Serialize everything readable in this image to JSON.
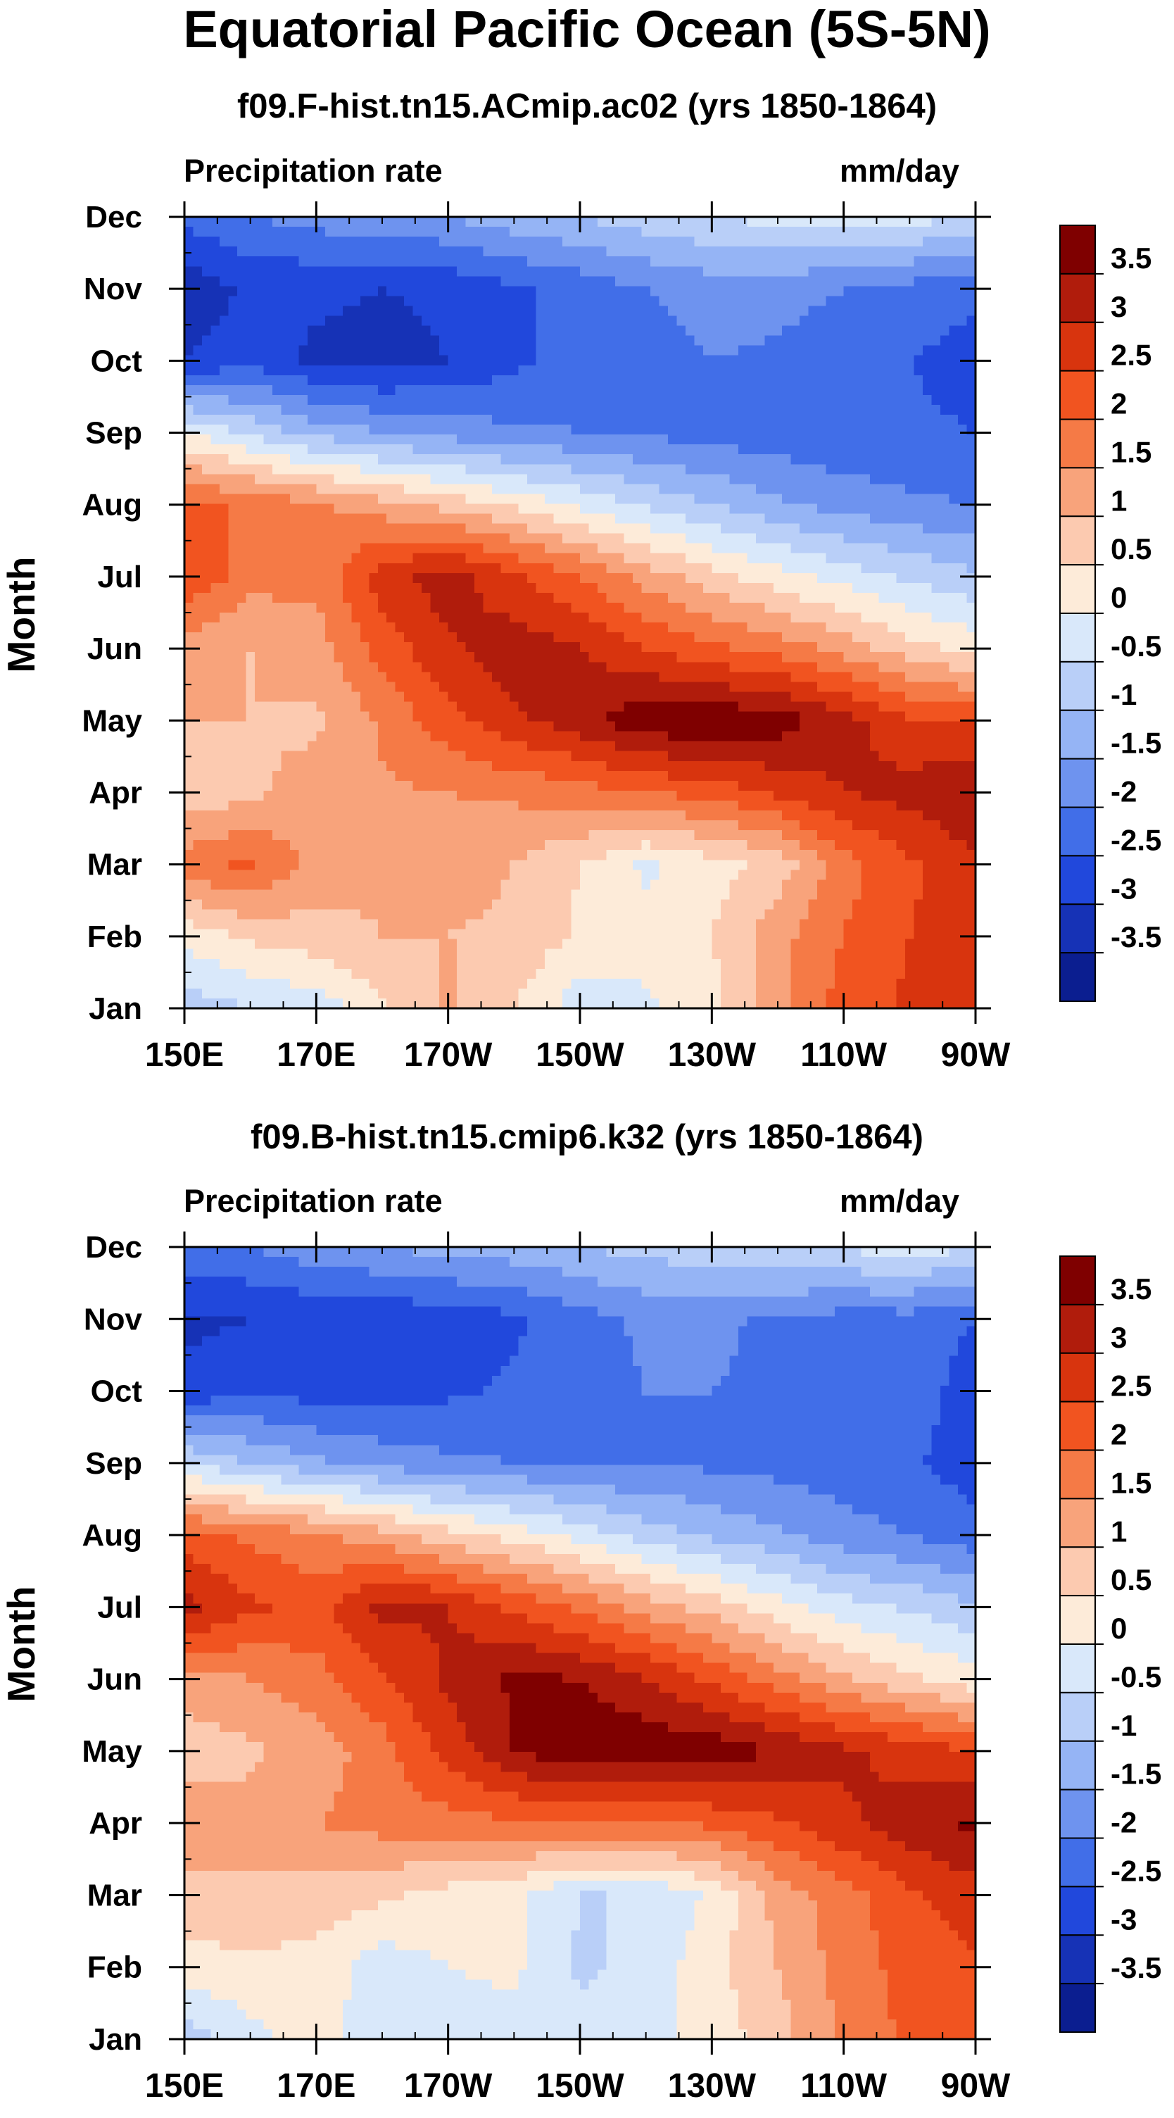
{
  "title": "Equatorial Pacific Ocean (5S-5N)",
  "chart_data": [
    {
      "type": "heatmap",
      "subtitle": "f09.F-hist.tn15.ACmip.ac02 (yrs 1850-1864)",
      "variable_label": "Precipitation rate",
      "units": "mm/day",
      "xlabel": "",
      "ylabel": "Month",
      "x_ticks": [
        "150E",
        "170E",
        "170W",
        "150W",
        "130W",
        "110W",
        "90W"
      ],
      "y_ticks": [
        "Jan",
        "Feb",
        "Mar",
        "Apr",
        "May",
        "Jun",
        "Jul",
        "Aug",
        "Sep",
        "Oct",
        "Nov",
        "Dec"
      ],
      "xlim": [
        150,
        270
      ],
      "ylim": [
        1,
        12
      ],
      "contour_levels": [
        "3.5",
        "3",
        "2.5",
        "2",
        "1.5",
        "1",
        "0.5",
        "0",
        "-0.5",
        "-1",
        "-1.5",
        "-2",
        "-2.5",
        "-3",
        "-3.5"
      ],
      "colors": [
        "#7f0000",
        "#b01c0c",
        "#d8340e",
        "#f15420",
        "#f57a46",
        "#f8a37b",
        "#fccab0",
        "#fdebd9",
        "#d9e8fa",
        "#b9cff8",
        "#95b4f5",
        "#6e93ef",
        "#416ee8",
        "#2148dc",
        "#1632b6",
        "#0b1e90"
      ],
      "values": [
        [
          -0.8,
          -0.5,
          -0.3,
          0.4,
          1.1,
          0.5,
          -0.3,
          -0.1,
          0.3,
          1.4,
          2.2,
          2.6,
          2.9
        ],
        [
          0.2,
          0.6,
          0.8,
          1.0,
          1.0,
          0.9,
          0.4,
          0.2,
          0.5,
          1.3,
          2.0,
          2.5,
          2.8
        ],
        [
          1.8,
          2.1,
          1.3,
          1.1,
          1.2,
          1.0,
          0.5,
          -0.1,
          0.3,
          0.7,
          1.8,
          2.4,
          2.9
        ],
        [
          0.6,
          0.9,
          1.2,
          1.4,
          1.5,
          1.6,
          1.8,
          2.0,
          2.2,
          2.6,
          3.0,
          3.2,
          3.5
        ],
        [
          1.0,
          1.0,
          0.9,
          1.6,
          2.3,
          2.9,
          3.3,
          3.9,
          3.9,
          3.8,
          3.2,
          2.6,
          2.4
        ],
        [
          1.2,
          1.0,
          1.3,
          2.2,
          2.9,
          3.3,
          3.0,
          2.5,
          2.1,
          1.8,
          1.3,
          0.7,
          0.3
        ],
        [
          2.5,
          1.7,
          1.6,
          2.8,
          3.3,
          2.6,
          2.0,
          1.3,
          0.7,
          0.2,
          -0.2,
          -0.6,
          -0.9
        ],
        [
          2.2,
          1.9,
          1.6,
          1.2,
          0.8,
          0.4,
          -0.1,
          -0.6,
          -1.0,
          -1.4,
          -1.7,
          -1.9,
          -2.0
        ],
        [
          0.0,
          -0.6,
          -1.2,
          -1.5,
          -1.7,
          -1.9,
          -2.0,
          -2.1,
          -2.2,
          -2.3,
          -2.4,
          -2.4,
          -2.5
        ],
        [
          -3.0,
          -2.7,
          -3.1,
          -3.2,
          -3.0,
          -2.6,
          -2.3,
          -2.2,
          -2.0,
          -2.1,
          -2.4,
          -2.5,
          -2.7
        ],
        [
          -3.4,
          -2.9,
          -2.9,
          -3.0,
          -2.9,
          -2.6,
          -2.3,
          -2.0,
          -1.8,
          -1.8,
          -2.0,
          -2.2,
          -2.4
        ],
        [
          -2.3,
          -2.0,
          -1.8,
          -1.6,
          -1.5,
          -1.2,
          -1.0,
          -0.7,
          -0.5,
          -0.3,
          -0.2,
          -0.3,
          -0.5
        ]
      ]
    },
    {
      "type": "heatmap",
      "subtitle": "f09.B-hist.tn15.cmip6.k32 (yrs 1850-1864)",
      "variable_label": "Precipitation rate",
      "units": "mm/day",
      "xlabel": "",
      "ylabel": "Month",
      "x_ticks": [
        "150E",
        "170E",
        "170W",
        "150W",
        "130W",
        "110W",
        "90W"
      ],
      "y_ticks": [
        "Jan",
        "Feb",
        "Mar",
        "Apr",
        "May",
        "Jun",
        "Jul",
        "Aug",
        "Sep",
        "Oct",
        "Nov",
        "Dec"
      ],
      "xlim": [
        150,
        270
      ],
      "ylim": [
        1,
        12
      ],
      "contour_levels": [
        "3.5",
        "3",
        "2.5",
        "2",
        "1.5",
        "1",
        "0.5",
        "0",
        "-0.5",
        "-1",
        "-1.5",
        "-2",
        "-2.5",
        "-3",
        "-3.5"
      ],
      "colors": [
        "#7f0000",
        "#b01c0c",
        "#d8340e",
        "#f15420",
        "#f57a46",
        "#f8a37b",
        "#fccab0",
        "#fdebd9",
        "#d9e8fa",
        "#b9cff8",
        "#95b4f5",
        "#6e93ef",
        "#416ee8",
        "#2148dc",
        "#1632b6",
        "#0b1e90"
      ],
      "values": [
        [
          -0.8,
          -0.2,
          0.3,
          -0.4,
          -0.3,
          -0.2,
          -0.3,
          -0.2,
          0.2,
          0.8,
          1.6,
          2.1,
          2.3
        ],
        [
          0.3,
          0.4,
          0.3,
          -0.3,
          0.0,
          0.1,
          -0.6,
          -0.3,
          0.3,
          1.0,
          1.7,
          2.2,
          2.4
        ],
        [
          0.8,
          0.9,
          0.8,
          0.6,
          0.3,
          0.1,
          -0.5,
          -0.5,
          0.1,
          1.2,
          1.8,
          2.4,
          2.8
        ],
        [
          1.4,
          1.2,
          1.5,
          1.7,
          1.8,
          1.9,
          2.0,
          2.0,
          2.1,
          2.4,
          2.9,
          3.3,
          3.6
        ],
        [
          0.7,
          0.9,
          1.2,
          1.8,
          2.7,
          3.5,
          3.9,
          3.9,
          3.8,
          3.5,
          3.1,
          2.8,
          2.5
        ],
        [
          1.3,
          1.5,
          1.8,
          2.4,
          3.1,
          3.6,
          3.5,
          3.0,
          2.4,
          1.7,
          1.1,
          0.6,
          0.2
        ],
        [
          3.2,
          2.6,
          2.3,
          3.2,
          3.0,
          2.4,
          1.9,
          1.3,
          0.8,
          0.2,
          -0.3,
          -0.6,
          -0.9
        ],
        [
          2.2,
          1.9,
          1.6,
          1.2,
          0.7,
          0.3,
          -0.2,
          -0.7,
          -1.1,
          -1.4,
          -1.8,
          -2.0,
          -2.3
        ],
        [
          -0.5,
          -1.0,
          -1.4,
          -1.7,
          -1.9,
          -2.0,
          -2.1,
          -2.1,
          -2.1,
          -2.2,
          -2.3,
          -2.4,
          -2.8
        ],
        [
          -2.9,
          -2.6,
          -2.7,
          -2.7,
          -2.6,
          -2.4,
          -2.2,
          -2.0,
          -2.0,
          -2.1,
          -2.2,
          -2.2,
          -2.8
        ],
        [
          -3.1,
          -3.0,
          -2.9,
          -2.9,
          -2.8,
          -2.6,
          -2.2,
          -1.9,
          -1.9,
          -2.1,
          -2.2,
          -2.2,
          -2.5
        ],
        [
          -2.2,
          -2.0,
          -1.7,
          -1.5,
          -1.3,
          -1.2,
          -1.0,
          -0.8,
          -0.7,
          -0.5,
          -0.4,
          -0.3,
          -0.4
        ]
      ]
    }
  ]
}
